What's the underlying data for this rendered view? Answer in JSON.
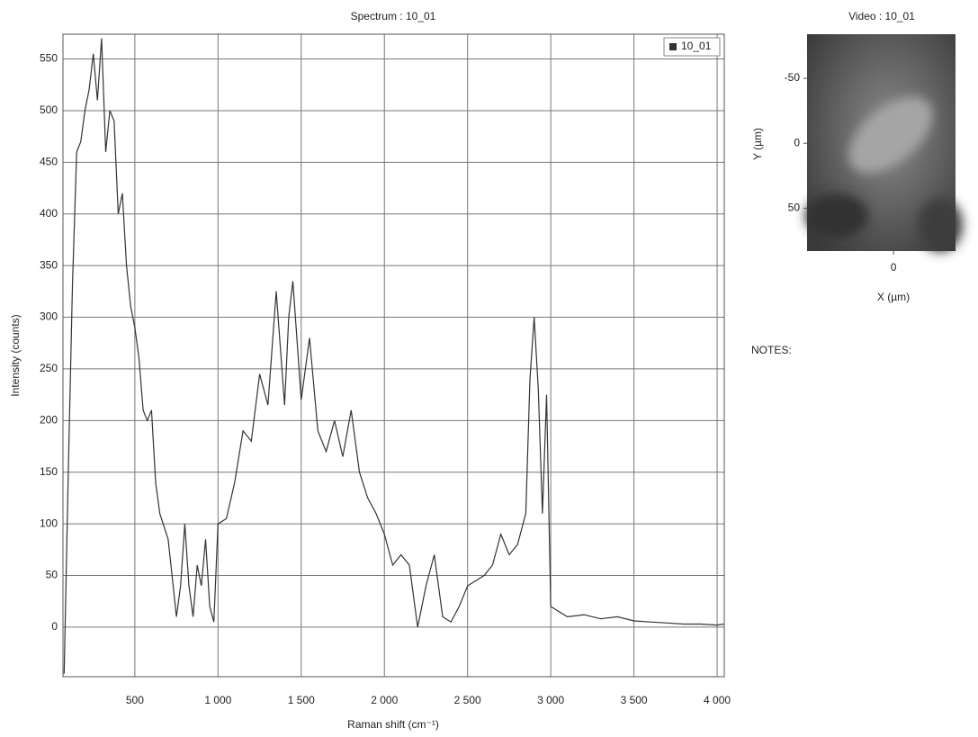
{
  "chart_data": [
    {
      "type": "line",
      "title": "Spectrum : 10_01",
      "x_label": "Raman shift (cm⁻¹)",
      "y_label": "Intensity (counts)",
      "x": [
        75,
        100,
        125,
        150,
        175,
        200,
        225,
        250,
        275,
        300,
        325,
        350,
        375,
        400,
        425,
        450,
        475,
        500,
        525,
        550,
        575,
        600,
        625,
        650,
        700,
        750,
        775,
        800,
        825,
        850,
        875,
        900,
        925,
        950,
        975,
        1000,
        1050,
        1100,
        1150,
        1200,
        1250,
        1300,
        1350,
        1400,
        1425,
        1450,
        1500,
        1550,
        1600,
        1650,
        1700,
        1750,
        1800,
        1850,
        1900,
        1950,
        2000,
        2050,
        2100,
        2150,
        2200,
        2250,
        2300,
        2350,
        2400,
        2450,
        2500,
        2550,
        2600,
        2650,
        2700,
        2750,
        2800,
        2850,
        2875,
        2900,
        2925,
        2950,
        2975,
        3000,
        3050,
        3100,
        3200,
        3300,
        3400,
        3500,
        3600,
        3700,
        3800,
        3900,
        4000,
        4040
      ],
      "series": [
        {
          "name": "10_01",
          "color": "#333333",
          "values": [
            -45,
            150,
            330,
            460,
            470,
            500,
            520,
            555,
            510,
            570,
            460,
            500,
            490,
            400,
            420,
            350,
            310,
            290,
            260,
            210,
            200,
            210,
            140,
            110,
            85,
            10,
            40,
            100,
            40,
            10,
            60,
            40,
            85,
            20,
            5,
            100,
            105,
            140,
            190,
            180,
            245,
            215,
            325,
            215,
            300,
            335,
            220,
            280,
            190,
            170,
            200,
            165,
            210,
            150,
            125,
            110,
            90,
            60,
            70,
            60,
            0,
            40,
            70,
            10,
            5,
            20,
            40,
            45,
            50,
            60,
            90,
            70,
            80,
            110,
            240,
            300,
            230,
            110,
            225,
            20,
            15,
            10,
            12,
            8,
            10,
            6,
            5,
            4,
            3,
            3,
            2,
            3
          ]
        }
      ],
      "xlim": [
        68,
        4043
      ],
      "ylim": [
        -48,
        574
      ],
      "xticks": [
        500,
        {
          "value": 1000,
          "label": "1 000"
        },
        {
          "value": 1500,
          "label": "1 500"
        },
        {
          "value": 2000,
          "label": "2 000"
        },
        {
          "value": 2500,
          "label": "2 500"
        },
        {
          "value": 3000,
          "label": "3 000"
        },
        {
          "value": 3500,
          "label": "3 500"
        },
        {
          "value": 4000,
          "label": "4 000"
        }
      ],
      "yticks": [
        0,
        50,
        100,
        150,
        200,
        250,
        300,
        350,
        400,
        450,
        500,
        550
      ],
      "grid": true,
      "legend": "upper right"
    },
    {
      "type": "image",
      "title": "Video : 10_01",
      "x_label": "X (µm)",
      "y_label": "Y (µm)",
      "xlim": [
        -67,
        48
      ],
      "ylim": [
        -84,
        83
      ],
      "xticks": [
        0
      ],
      "yticks": [
        -50,
        0,
        50
      ]
    }
  ],
  "notes": "NOTES:"
}
